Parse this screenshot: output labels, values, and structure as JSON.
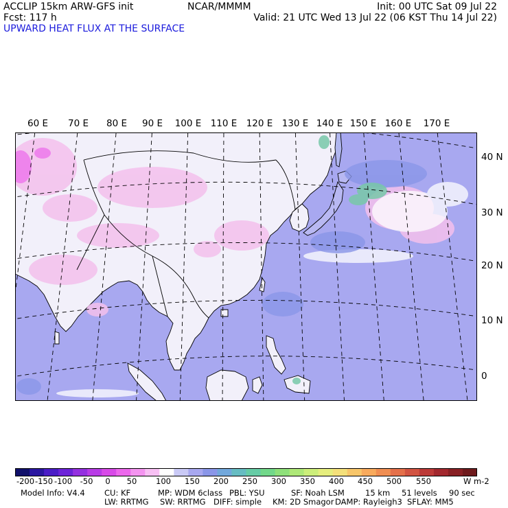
{
  "header": {
    "model_line": "ACCLIP 15km ARW-GFS init",
    "forecast_line": "Fcst:  117 h",
    "field_title": "UPWARD HEAT FLUX AT THE SURFACE",
    "center": "NCAR/MMMM",
    "init": "Init: 00 UTC Sat 09 Jul 22",
    "valid": "Valid: 21 UTC Wed 13 Jul 22 (06 KST Thu 14 Jul 22)"
  },
  "map": {
    "lon_labels": [
      "60 E",
      "70 E",
      "80 E",
      "90 E",
      "100 E",
      "110 E",
      "120 E",
      "130 E",
      "140 E",
      "150 E",
      "160 E",
      "170 E"
    ],
    "lat_labels": [
      "40 N",
      "30 N",
      "20 N",
      "10 N",
      "0"
    ],
    "colors": {
      "ocean": "#a8a8f0",
      "land_low": "#f2f0fa",
      "land_pink": "#f4c0ec",
      "green": "#78c8a8",
      "coast": "#000000",
      "grid": "#000000"
    }
  },
  "colorbar": {
    "ticks": [
      "-200",
      "-150",
      "-100",
      "-50",
      "0",
      "50",
      "100",
      "150",
      "200",
      "250",
      "300",
      "350",
      "400",
      "450",
      "500",
      "550"
    ],
    "unit": "W m-2",
    "colors": [
      "#10106a",
      "#2a16a0",
      "#4a1cc6",
      "#6c22d8",
      "#9430e0",
      "#b83ce6",
      "#d84ae8",
      "#ec68ec",
      "#f494f0",
      "#f8c0f4",
      "#ffffff",
      "#cacaf6",
      "#a8a8f0",
      "#8a96e8",
      "#72a8dc",
      "#66bcc2",
      "#66cca6",
      "#72d88a",
      "#8ee07a",
      "#aee878",
      "#ccee7a",
      "#e6ee7e",
      "#f4e07a",
      "#f8c66a",
      "#f8aa5c",
      "#f08e52",
      "#e4704a",
      "#d25442",
      "#bc3a38",
      "#a2282e",
      "#882024",
      "#6e1a1c"
    ]
  },
  "footer": {
    "line1": [
      "Model Info: V4.4",
      "CU: KF",
      "MP: WDM 6class",
      "PBL: YSU",
      "SF: Noah LSM",
      "15 km",
      "51 levels",
      "90 sec"
    ],
    "line2": [
      "LW: RRTMG",
      "SW: RRTMG",
      "DIFF: simple",
      "KM: 2D Smagor",
      "DAMP: Rayleigh3",
      "SFLAY: MM5"
    ]
  }
}
